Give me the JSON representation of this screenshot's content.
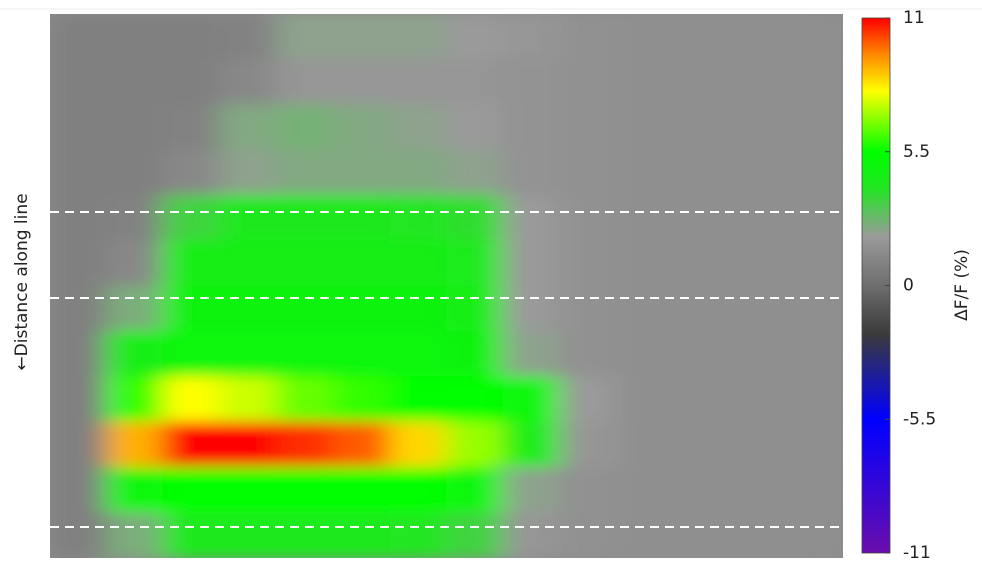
{
  "chart_data": {
    "type": "heatmap",
    "ylabel": "←Distance along line",
    "colorbar_label": "ΔF/F (%)",
    "clim": [
      -11,
      11
    ],
    "colorbar_ticks": [
      11,
      5.5,
      0,
      -5.5,
      -11
    ],
    "colormap": [
      [
        -11,
        "#6a0dad"
      ],
      [
        -5.5,
        "#0000ff"
      ],
      [
        -2,
        "#3a3a3a"
      ],
      [
        0,
        "#6e6e6e"
      ],
      [
        2,
        "#9a9a9a"
      ],
      [
        4,
        "#22e622"
      ],
      [
        5.5,
        "#00ff00"
      ],
      [
        8,
        "#ffff00"
      ],
      [
        9.5,
        "#ff8800"
      ],
      [
        11,
        "#ff0000"
      ]
    ],
    "values": [
      [
        0.8,
        0.8,
        0.8,
        0.9,
        2.2,
        2.2,
        2.2,
        2,
        1.8,
        1.6,
        1.5,
        1.5,
        1.5,
        1.5
      ],
      [
        0.8,
        0.8,
        0.8,
        1.2,
        1.8,
        1.8,
        1.8,
        1.8,
        1.7,
        1.6,
        1.5,
        1.5,
        1.5,
        1.5
      ],
      [
        0.8,
        0.8,
        0.9,
        2.4,
        2.6,
        2.4,
        2.2,
        2,
        1.7,
        1.6,
        1.5,
        1.5,
        1.5,
        1.5
      ],
      [
        0.8,
        0.8,
        1.2,
        2.2,
        2.4,
        2.4,
        2.4,
        2.2,
        1.7,
        1.6,
        1.5,
        1.5,
        1.5,
        1.5
      ],
      [
        0.8,
        0.9,
        3.5,
        4.2,
        4.2,
        4.2,
        4,
        3.8,
        2,
        1.6,
        1.5,
        1.5,
        1.5,
        1.5
      ],
      [
        0.8,
        1.2,
        4.5,
        4.5,
        4.5,
        4.5,
        4.5,
        4.3,
        2,
        1.6,
        1.5,
        1.5,
        1.5,
        1.5
      ],
      [
        0.8,
        2.5,
        4.8,
        4.8,
        4.8,
        4.8,
        4.8,
        4.5,
        2,
        1.6,
        1.5,
        1.5,
        1.5,
        1.5
      ],
      [
        0.8,
        4.5,
        5,
        5,
        5,
        5,
        5,
        4.8,
        2.2,
        1.6,
        1.5,
        1.5,
        1.5,
        1.5
      ],
      [
        0.8,
        6,
        8,
        7.5,
        6.5,
        6,
        5.5,
        5.5,
        5,
        2,
        1.5,
        1.5,
        1.5,
        1.5
      ],
      [
        0.8,
        9,
        11,
        11,
        10.5,
        10,
        8.5,
        7,
        4.5,
        1.8,
        1.5,
        1.5,
        1.5,
        1.5
      ],
      [
        0.8,
        5,
        5.5,
        5.5,
        5.5,
        5.5,
        5.5,
        5,
        2.2,
        1.6,
        1.5,
        1.5,
        1.5,
        1.5
      ],
      [
        0.8,
        2.5,
        4.2,
        4.2,
        4.2,
        4.2,
        4,
        3.5,
        1.8,
        1.6,
        1.5,
        1.5,
        1.5,
        1.5
      ]
    ]
  }
}
